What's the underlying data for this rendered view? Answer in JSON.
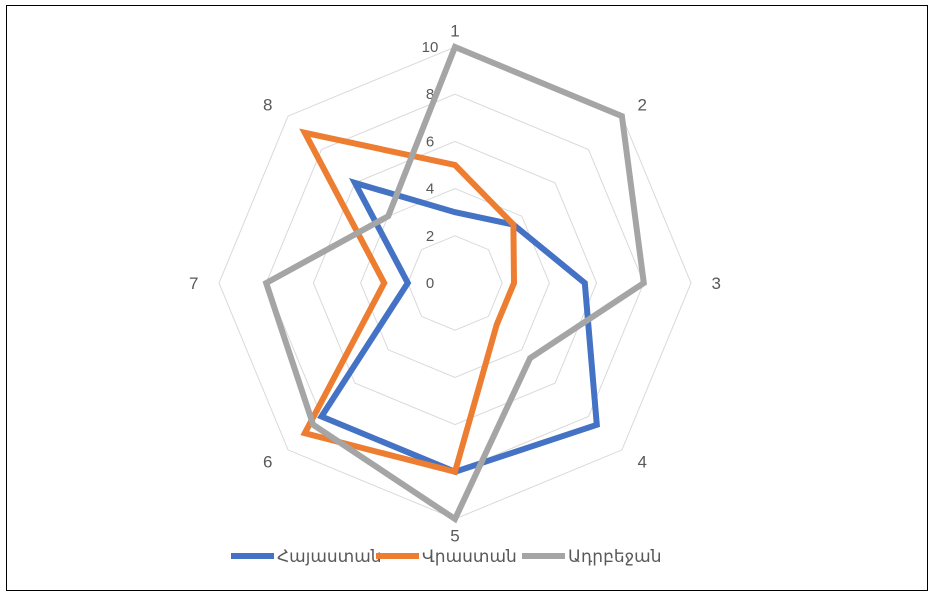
{
  "chart_data": {
    "type": "radar",
    "categories": [
      "1",
      "2",
      "3",
      "4",
      "5",
      "6",
      "7",
      "8"
    ],
    "rlim": [
      0,
      10
    ],
    "r_ticks": [
      "0",
      "2",
      "4",
      "6",
      "8",
      "10"
    ],
    "grid": true,
    "legend_position": "bottom",
    "series": [
      {
        "name": "Հայաստան",
        "color": "#4472C4",
        "values": [
          3,
          3.5,
          5.5,
          8.5,
          8,
          8,
          2,
          6
        ]
      },
      {
        "name": "Վրաստան",
        "color": "#ED7D31",
        "values": [
          5,
          3.5,
          2.5,
          2.5,
          8,
          9,
          3,
          9
        ]
      },
      {
        "name": "Ադրբեջան",
        "color": "#A5A5A5",
        "values": [
          10,
          10,
          8,
          4.5,
          10,
          8.5,
          8,
          4
        ]
      }
    ]
  }
}
